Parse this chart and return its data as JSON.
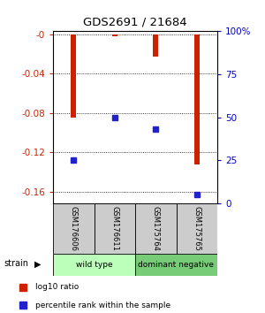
{
  "title": "GDS2691 / 21684",
  "categories": [
    "GSM176606",
    "GSM176611",
    "GSM175764",
    "GSM175765"
  ],
  "log10_values": [
    -0.085,
    -0.002,
    -0.023,
    -0.132
  ],
  "percentile_pct": [
    25,
    50,
    43,
    5
  ],
  "left_ylim": [
    -0.172,
    0.003
  ],
  "left_yticks": [
    0,
    -0.04,
    -0.08,
    -0.12,
    -0.16
  ],
  "left_yticklabels": [
    "-0",
    "-0.04",
    "-0.08",
    "-0.12",
    "-0.16"
  ],
  "right_yticks": [
    0.0,
    0.25,
    0.5,
    0.75,
    1.0
  ],
  "right_yticklabels": [
    "0",
    "25",
    "50",
    "75",
    "100%"
  ],
  "bar_color": "#cc2200",
  "marker_color": "#2222cc",
  "bar_width": 0.12,
  "groups": [
    {
      "label": "wild type",
      "indices": [
        0,
        1
      ],
      "color": "#bbffbb"
    },
    {
      "label": "dominant negative",
      "indices": [
        2,
        3
      ],
      "color": "#77cc77"
    }
  ],
  "strain_label": "strain",
  "legend_red": "log10 ratio",
  "legend_blue": "percentile rank within the sample",
  "title_color": "#000000",
  "left_tick_color": "#cc2200",
  "right_tick_color": "#0000cc",
  "grid_color": "#000000",
  "label_box_color": "#cccccc",
  "bg_color": "#ffffff"
}
